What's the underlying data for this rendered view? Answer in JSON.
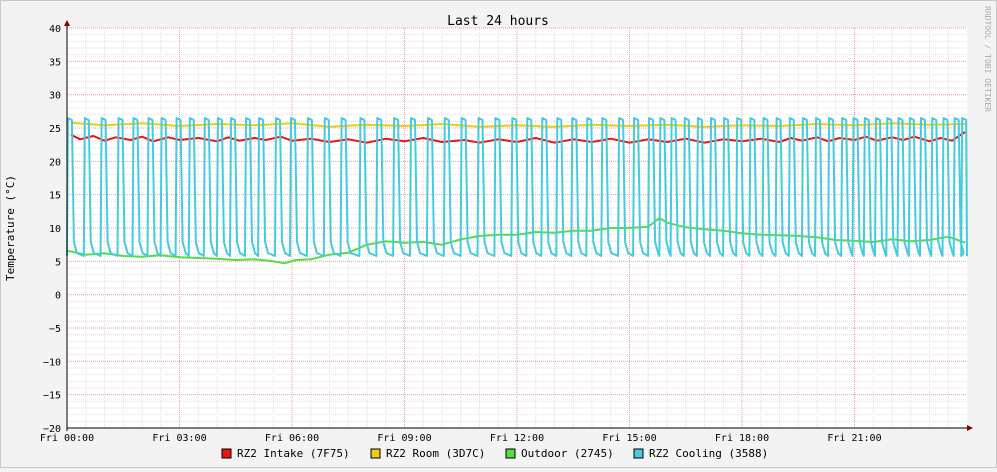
{
  "chart_data": {
    "type": "line",
    "title": "Last 24 hours",
    "ylabel": "Temperature (°C)",
    "watermark": "RRDTOOL / TOBI OETIKER",
    "ylim": [
      -20,
      40
    ],
    "yticks": [
      -20,
      -15,
      -10,
      -5,
      0,
      5,
      10,
      15,
      20,
      25,
      30,
      35,
      40
    ],
    "xlim_hours": [
      0,
      24
    ],
    "xticks": [
      {
        "hour": 0,
        "label": "Fri 00:00"
      },
      {
        "hour": 3,
        "label": "Fri 03:00"
      },
      {
        "hour": 6,
        "label": "Fri 06:00"
      },
      {
        "hour": 9,
        "label": "Fri 09:00"
      },
      {
        "hour": 12,
        "label": "Fri 12:00"
      },
      {
        "hour": 15,
        "label": "Fri 15:00"
      },
      {
        "hour": 18,
        "label": "Fri 18:00"
      },
      {
        "hour": 21,
        "label": "Fri 21:00"
      }
    ],
    "grid": true,
    "legend_position": "bottom",
    "series": [
      {
        "name": "RZ2 Intake (7F75)",
        "color": "#EE1111",
        "x": [
          0.1,
          0.35,
          0.7,
          1.0,
          1.3,
          1.7,
          2.0,
          2.3,
          2.7,
          3.0,
          3.5,
          4.0,
          4.3,
          4.6,
          5.0,
          5.3,
          5.7,
          6.0,
          6.5,
          7.0,
          7.5,
          8.0,
          8.5,
          9.0,
          9.5,
          10.0,
          10.6,
          11.0,
          11.5,
          12.0,
          12.5,
          13.0,
          13.5,
          14.0,
          14.5,
          15.0,
          15.5,
          16.0,
          16.5,
          17.0,
          17.5,
          18.0,
          18.5,
          19.0,
          19.3,
          19.6,
          20.0,
          20.3,
          20.6,
          21.0,
          21.3,
          21.6,
          22.0,
          22.3,
          22.6,
          23.0,
          23.3,
          23.6,
          23.95
        ],
        "y": [
          24.0,
          23.3,
          23.8,
          23.1,
          23.6,
          23.2,
          23.7,
          23.0,
          23.6,
          23.2,
          23.5,
          23.0,
          23.6,
          23.1,
          23.5,
          23.2,
          23.7,
          23.1,
          23.4,
          22.9,
          23.3,
          22.8,
          23.4,
          23.0,
          23.5,
          22.9,
          23.2,
          22.8,
          23.3,
          22.9,
          23.5,
          22.8,
          23.3,
          22.9,
          23.4,
          22.8,
          23.3,
          22.9,
          23.4,
          22.8,
          23.3,
          23.0,
          23.4,
          22.9,
          23.5,
          23.1,
          23.6,
          23.0,
          23.5,
          23.2,
          23.7,
          23.1,
          23.6,
          23.2,
          23.7,
          23.0,
          23.5,
          23.1,
          24.4
        ]
      },
      {
        "name": "RZ2 Room (3D7C)",
        "color": "#EECC11",
        "x": [
          0.1,
          1.0,
          2.0,
          3.0,
          4.0,
          5.0,
          6.0,
          7.0,
          8.0,
          9.0,
          10.0,
          11.0,
          12.0,
          13.0,
          14.0,
          15.0,
          16.0,
          17.0,
          18.0,
          19.0,
          20.0,
          21.0,
          22.0,
          23.0,
          23.95
        ],
        "y": [
          25.8,
          25.4,
          25.7,
          25.3,
          25.6,
          25.4,
          25.7,
          25.2,
          25.5,
          25.3,
          25.6,
          25.2,
          25.4,
          25.2,
          25.5,
          25.3,
          25.5,
          25.2,
          25.4,
          25.3,
          25.6,
          25.4,
          25.7,
          25.5,
          25.6
        ]
      },
      {
        "name": "Outdoor (2745)",
        "color": "#55DD44",
        "x": [
          0.0,
          0.5,
          1.0,
          1.5,
          2.0,
          2.5,
          3.0,
          3.5,
          4.0,
          4.5,
          5.0,
          5.5,
          5.8,
          6.1,
          6.5,
          7.0,
          7.5,
          8.0,
          8.5,
          9.0,
          9.5,
          10.0,
          10.5,
          11.0,
          11.5,
          12.0,
          12.5,
          13.0,
          13.5,
          14.0,
          14.5,
          15.0,
          15.5,
          15.8,
          16.0,
          16.5,
          17.0,
          17.5,
          18.0,
          18.5,
          19.0,
          19.5,
          20.0,
          20.5,
          21.0,
          21.5,
          22.0,
          22.5,
          23.0,
          23.5,
          23.95
        ],
        "y": [
          6.6,
          6.0,
          6.2,
          5.8,
          5.7,
          5.9,
          5.6,
          5.5,
          5.4,
          5.2,
          5.3,
          5.0,
          4.7,
          5.2,
          5.3,
          6.0,
          6.3,
          7.5,
          8.0,
          7.8,
          7.9,
          7.5,
          8.3,
          8.8,
          9.0,
          9.0,
          9.4,
          9.3,
          9.6,
          9.6,
          10.0,
          10.0,
          10.2,
          11.5,
          10.8,
          10.1,
          9.8,
          9.6,
          9.2,
          9.0,
          8.9,
          8.8,
          8.6,
          8.2,
          8.1,
          7.9,
          8.3,
          8.0,
          8.2,
          8.7,
          7.8
        ]
      },
      {
        "name": "RZ2 Cooling (3588)",
        "color": "#44CCDD",
        "spike_hours": [
          0.05,
          0.5,
          0.95,
          1.4,
          1.8,
          2.2,
          2.55,
          2.95,
          3.3,
          3.7,
          4.05,
          4.4,
          4.8,
          5.15,
          5.6,
          6.0,
          6.45,
          6.9,
          7.35,
          7.85,
          8.3,
          8.75,
          9.2,
          9.65,
          10.1,
          10.55,
          11.0,
          11.45,
          11.9,
          12.3,
          12.7,
          13.1,
          13.5,
          13.9,
          14.3,
          14.75,
          15.15,
          15.55,
          15.85,
          16.15,
          16.5,
          16.85,
          17.2,
          17.55,
          17.9,
          18.25,
          18.6,
          18.95,
          19.3,
          19.65,
          20.0,
          20.35,
          20.7,
          21.0,
          21.3,
          21.6,
          21.9,
          22.2,
          22.5,
          22.8,
          23.1,
          23.4,
          23.7,
          23.9
        ],
        "peak": 26.5,
        "baseline": 5.8
      }
    ]
  }
}
